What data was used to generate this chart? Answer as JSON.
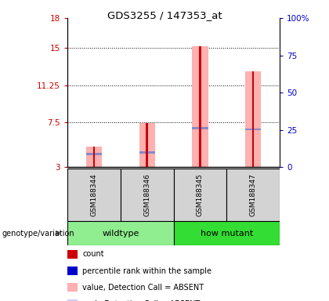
{
  "title": "GDS3255 / 147353_at",
  "samples": [
    "GSM188344",
    "GSM188346",
    "GSM188345",
    "GSM188347"
  ],
  "ylim_left": [
    3,
    18
  ],
  "ylim_right": [
    0,
    100
  ],
  "yticks_left": [
    3,
    7.5,
    11.25,
    15,
    18
  ],
  "yticks_right": [
    0,
    25,
    50,
    75,
    100
  ],
  "ytick_labels_left": [
    "3",
    "7.5",
    "11.25",
    "15",
    "18"
  ],
  "ytick_labels_right": [
    "0",
    "25",
    "50",
    "75",
    "100%"
  ],
  "left_axis_color": "#cc0000",
  "right_axis_color": "#0000cc",
  "bar_bottom": 3,
  "pink_bar_values": [
    5.1,
    7.4,
    15.2,
    12.6
  ],
  "blue_marker_values": [
    4.3,
    4.5,
    6.9,
    6.8
  ],
  "bar_color_red": "#cc0000",
  "bar_color_pink": "#ffb0b0",
  "bar_color_blue": "#8888cc",
  "bg_sample_area": "#d3d3d3",
  "wildtype_color": "#90ee90",
  "howmutant_color": "#33dd33",
  "legend_items": [
    {
      "color": "#cc0000",
      "label": "count"
    },
    {
      "color": "#0000cc",
      "label": "percentile rank within the sample"
    },
    {
      "color": "#ffb0b0",
      "label": "value, Detection Call = ABSENT"
    },
    {
      "color": "#ccccff",
      "label": "rank, Detection Call = ABSENT"
    }
  ],
  "genotype_label": "genotype/variation"
}
